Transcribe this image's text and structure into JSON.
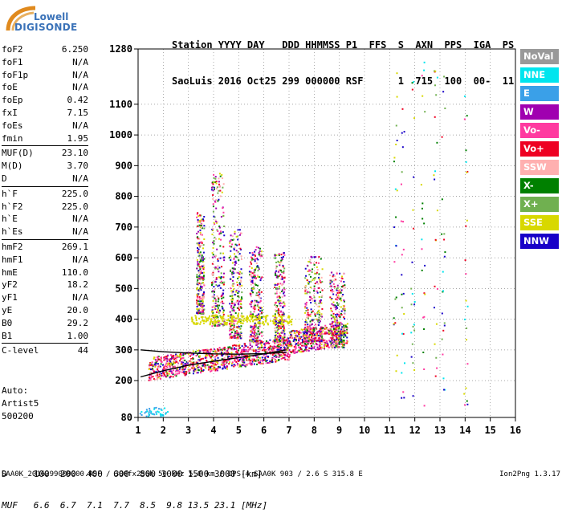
{
  "logo": {
    "line1": "Lowell",
    "line2": "DIGISONDE"
  },
  "header": {
    "line1": "Station YYYY DAY   DDD HHMMSS P1  FFS  S  AXN  PPS  IGA  PS",
    "line2": "SaoLuis 2016 Oct25 299 000000 RSF      1  715  100  00-  11"
  },
  "parameters": [
    {
      "name": "foF2",
      "value": "6.250"
    },
    {
      "name": "foF1",
      "value": "N/A"
    },
    {
      "name": "foF1p",
      "value": "N/A"
    },
    {
      "name": "foE",
      "value": "N/A"
    },
    {
      "name": "foEp",
      "value": "0.42"
    },
    {
      "name": "fxI",
      "value": "7.15"
    },
    {
      "name": "foEs",
      "value": "N/A"
    },
    {
      "name": "fmin",
      "value": "1.95"
    },
    {
      "name": "MUF(D)",
      "value": "23.10"
    },
    {
      "name": "M(D)",
      "value": "3.70"
    },
    {
      "name": "D",
      "value": "N/A"
    },
    {
      "name": "h`F",
      "value": "225.0"
    },
    {
      "name": "h`F2",
      "value": "225.0"
    },
    {
      "name": "h`E",
      "value": "N/A"
    },
    {
      "name": "h`Es",
      "value": "N/A"
    },
    {
      "name": "hmF2",
      "value": "269.1"
    },
    {
      "name": "hmF1",
      "value": "N/A"
    },
    {
      "name": "hmE",
      "value": "110.0"
    },
    {
      "name": "yF2",
      "value": "18.2"
    },
    {
      "name": "yF1",
      "value": "N/A"
    },
    {
      "name": "yE",
      "value": "20.0"
    },
    {
      "name": "B0",
      "value": "29.2"
    },
    {
      "name": "B1",
      "value": "1.00"
    },
    {
      "name": "C-level",
      "value": "44"
    }
  ],
  "auto": {
    "line1": "Auto:",
    "line2": "Artist5",
    "line3": "500200"
  },
  "legend": [
    {
      "label": "NoVal",
      "color": "#999999"
    },
    {
      "label": "NNE",
      "color": "#00e5ee"
    },
    {
      "label": "E",
      "color": "#3aa0e8"
    },
    {
      "label": "W",
      "color": "#a000b0"
    },
    {
      "label": "Vo-",
      "color": "#ff3aa0"
    },
    {
      "label": "Vo+",
      "color": "#ee0022"
    },
    {
      "label": "SSW",
      "color": "#ffb0b0"
    },
    {
      "label": "X-",
      "color": "#008000"
    },
    {
      "label": "X+",
      "color": "#70b050"
    },
    {
      "label": "SSE",
      "color": "#d8d800"
    },
    {
      "label": "NNW",
      "color": "#1800c8"
    }
  ],
  "bottom": {
    "d_line": "D     100  200  400  600  800 1000 1500 3000 [km]",
    "muf_line": "MUF   6.6  6.7  7.1  7.7  8.5  9.8 13.5 23.1 [MHz]"
  },
  "footer": {
    "left": "SAA0K_2016299000000.RSF / 300fx256h 50 kHz 5.0 km / DPS-4 SAA0K 903 / 2.6 S 315.8 E",
    "right": "Ion2Png 1.3.17"
  },
  "chart_data": {
    "type": "scatter",
    "title": "",
    "xlabel": "",
    "ylabel": "",
    "xlim": [
      1,
      16
    ],
    "ylim": [
      80,
      1280
    ],
    "x_ticks": [
      1,
      2,
      3,
      4,
      5,
      6,
      7,
      8,
      9,
      10,
      11,
      12,
      13,
      14,
      15,
      16
    ],
    "y_ticks": [
      80,
      200,
      300,
      400,
      500,
      600,
      700,
      800,
      900,
      1000,
      1100,
      1280
    ],
    "x_tick_labels": [
      "1",
      "2",
      "3",
      "4",
      "5",
      "6",
      "7",
      "8",
      "9",
      "10",
      "11",
      "12",
      "13",
      "14",
      "15",
      "16"
    ],
    "y_tick_labels": [
      "80",
      "200",
      "300",
      "400",
      "500",
      "600",
      "700",
      "800",
      "900",
      "1000",
      "1100",
      "1280"
    ],
    "grid": "dotted",
    "legend_position": "right",
    "trace_lines": [
      {
        "name": "lower trace",
        "color": "#000000",
        "points": [
          [
            1.1,
            212
          ],
          [
            2,
            232
          ],
          [
            3,
            250
          ],
          [
            4,
            263
          ],
          [
            5,
            275
          ],
          [
            6,
            287
          ],
          [
            6.9,
            300
          ]
        ]
      },
      {
        "name": "upper trace",
        "color": "#000000",
        "points": [
          [
            1.1,
            300
          ],
          [
            2,
            294
          ],
          [
            3,
            290
          ],
          [
            4,
            287
          ],
          [
            5,
            286
          ],
          [
            6,
            288
          ],
          [
            6.9,
            292
          ]
        ]
      }
    ]
  }
}
